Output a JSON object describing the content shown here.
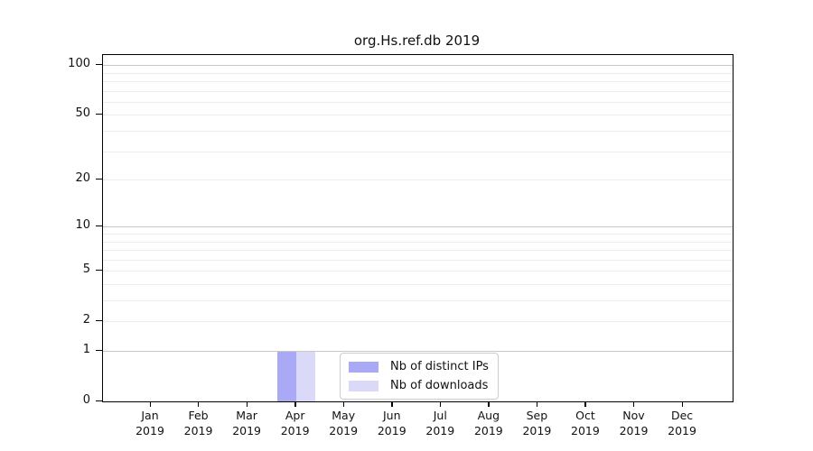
{
  "chart_data": {
    "type": "bar",
    "title": "org.Hs.ref.db 2019",
    "categories": [
      "Jan 2019",
      "Feb 2019",
      "Mar 2019",
      "Apr 2019",
      "May 2019",
      "Jun 2019",
      "Jul 2019",
      "Aug 2019",
      "Sep 2019",
      "Oct 2019",
      "Nov 2019",
      "Dec 2019"
    ],
    "x_tick_months": [
      "Jan",
      "Feb",
      "Mar",
      "Apr",
      "May",
      "Jun",
      "Jul",
      "Aug",
      "Sep",
      "Oct",
      "Nov",
      "Dec"
    ],
    "x_tick_year": "2019",
    "series": [
      {
        "name": "Nb of distinct IPs",
        "color": "#a9a9f6",
        "values": [
          0,
          0,
          0,
          1,
          0,
          0,
          0,
          0,
          0,
          0,
          0,
          0
        ]
      },
      {
        "name": "Nb of downloads",
        "color": "#dadaf8",
        "values": [
          0,
          0,
          0,
          1,
          0,
          0,
          0,
          0,
          0,
          0,
          0,
          0
        ]
      }
    ],
    "y_axis": {
      "scale": "log1p",
      "ticks": [
        0,
        1,
        2,
        5,
        10,
        20,
        50,
        100
      ],
      "limit_top": 115,
      "grid_major_values": [
        1,
        10,
        100
      ],
      "grid_minor_values": [
        2,
        3,
        4,
        5,
        6,
        7,
        8,
        9,
        20,
        30,
        40,
        50,
        60,
        70,
        80,
        90
      ]
    },
    "grid": "horizontal",
    "legend_position": "bottom-center"
  },
  "colors": {
    "grid_major": "#c8c8c8",
    "grid_minor": "#ececec",
    "axis": "#000000",
    "text": "#111111",
    "legend_border": "#cccccc",
    "background": "#ffffff"
  }
}
